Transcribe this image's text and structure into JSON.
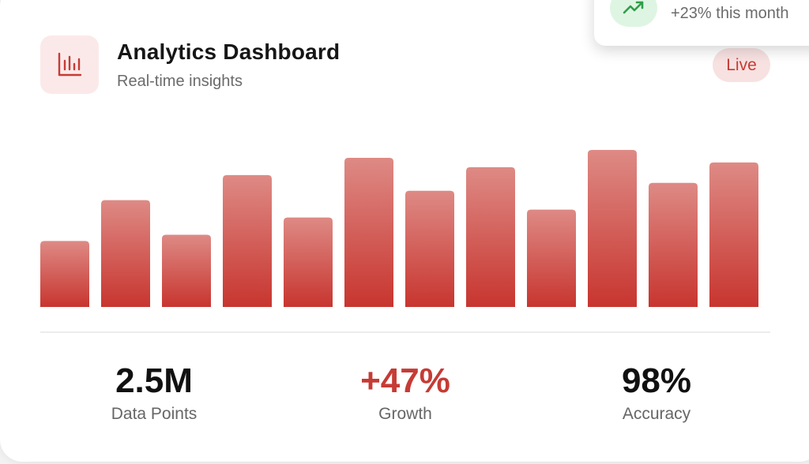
{
  "header": {
    "title": "Analytics Dashboard",
    "subtitle": "Real-time insights",
    "icon": "bar-chart-icon",
    "badge": "Live"
  },
  "notification": {
    "icon": "trending-up-icon",
    "text": "+23% this month"
  },
  "chart_data": {
    "type": "bar",
    "values": [
      42,
      68,
      46,
      84,
      57,
      95,
      74,
      89,
      62,
      100,
      79,
      92
    ],
    "ylim": [
      0,
      100
    ],
    "colors": {
      "top": "#de8a85",
      "bottom": "#c8352f"
    }
  },
  "stats": [
    {
      "value": "2.5M",
      "label": "Data Points"
    },
    {
      "value": "+47%",
      "label": "Growth"
    },
    {
      "value": "98%",
      "label": "Accuracy"
    }
  ],
  "colors": {
    "accent": "#c63b35",
    "badge_bg": "#f7e1e1",
    "icon_bg": "#fbe9e9",
    "success_bg": "#dff5e3",
    "success": "#2f9e49"
  }
}
